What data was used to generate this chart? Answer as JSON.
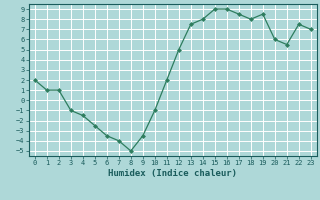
{
  "x": [
    0,
    1,
    2,
    3,
    4,
    5,
    6,
    7,
    8,
    9,
    10,
    11,
    12,
    13,
    14,
    15,
    16,
    17,
    18,
    19,
    20,
    21,
    22,
    23
  ],
  "y": [
    2,
    1,
    1,
    -1,
    -1.5,
    -2.5,
    -3.5,
    -4,
    -5,
    -3.5,
    -1,
    2,
    5,
    7.5,
    8,
    9,
    9,
    8.5,
    8,
    8.5,
    6,
    5.5,
    7.5,
    7
  ],
  "line_color": "#2e7d5e",
  "marker_color": "#2e7d5e",
  "bg_color": "#aed8d8",
  "grid_color": "#ffffff",
  "xlabel": "Humidex (Indice chaleur)",
  "xlabel_color": "#1a5c5c",
  "tick_color": "#1a5c5c",
  "xlim": [
    -0.5,
    23.5
  ],
  "ylim": [
    -5.5,
    9.5
  ],
  "yticks": [
    -5,
    -4,
    -3,
    -2,
    -1,
    0,
    1,
    2,
    3,
    4,
    5,
    6,
    7,
    8,
    9
  ],
  "xticks": [
    0,
    1,
    2,
    3,
    4,
    5,
    6,
    7,
    8,
    9,
    10,
    11,
    12,
    13,
    14,
    15,
    16,
    17,
    18,
    19,
    20,
    21,
    22,
    23
  ]
}
